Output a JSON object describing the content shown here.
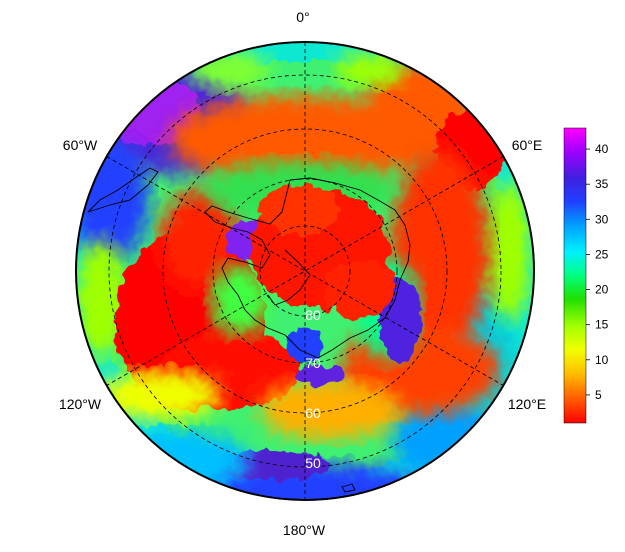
{
  "map": {
    "projection": "south-polar-stereographic",
    "lon_labels": {
      "top": "0°",
      "upper_left": "60°W",
      "upper_right": "60°E",
      "lower_left": "120°W",
      "lower_right": "120°E",
      "bottom": "180°W"
    },
    "lat_labels": [
      "80",
      "70",
      "60",
      "50"
    ],
    "lat_circles_deg": [
      -80,
      -70,
      -60,
      -50
    ],
    "outer_limit_deg": -40,
    "meridian_lines": "dashed",
    "coastline_color": "#000000"
  },
  "colorbar": {
    "tick_labels": [
      "5",
      "10",
      "15",
      "20",
      "25",
      "30",
      "35",
      "40"
    ],
    "range": [
      1,
      43
    ],
    "colormap": [
      "#ff0000",
      "#ff5a00",
      "#ffc000",
      "#f0ff00",
      "#a0ff00",
      "#20e000",
      "#00ff80",
      "#00f0ff",
      "#00a0ff",
      "#2040ff",
      "#4020e0",
      "#a000ff",
      "#ff00ff"
    ]
  }
}
